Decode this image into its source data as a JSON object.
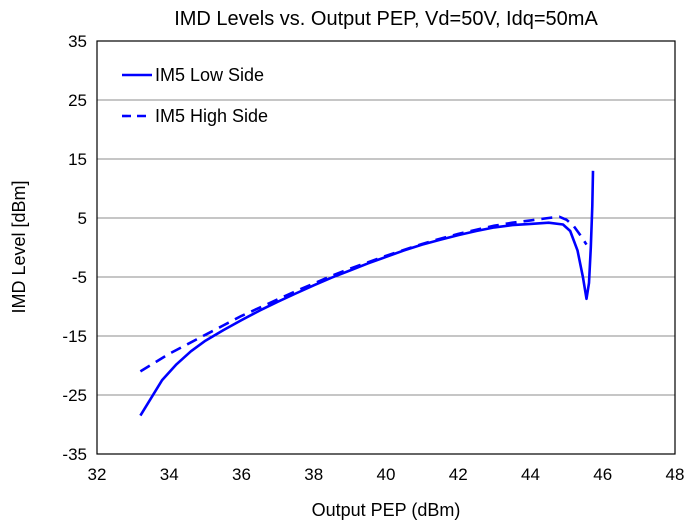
{
  "chart_data": {
    "type": "line",
    "title": "IMD Levels vs. Output PEP, Vd=50V, Idq=50mA",
    "xlabel": "Output PEP (dBm)",
    "ylabel": "IMD Level [dBm]",
    "xlim": [
      32,
      48
    ],
    "ylim": [
      -35,
      35
    ],
    "x_ticks": [
      "32",
      "34",
      "36",
      "38",
      "40",
      "42",
      "44",
      "46",
      "48"
    ],
    "y_ticks": [
      "35",
      "25",
      "15",
      "5",
      "-5",
      "-15",
      "-25",
      "-35"
    ],
    "grid": "horizontal",
    "legend_position": "top-left",
    "series": [
      {
        "name": "IM5 Low Side",
        "color": "#0000ff",
        "style": "solid",
        "points": [
          [
            33.2,
            -28.5
          ],
          [
            33.5,
            -25.5
          ],
          [
            33.8,
            -22.5
          ],
          [
            34.2,
            -19.8
          ],
          [
            34.6,
            -17.6
          ],
          [
            35.0,
            -15.8
          ],
          [
            35.5,
            -14.0
          ],
          [
            36.0,
            -12.3
          ],
          [
            36.5,
            -10.7
          ],
          [
            37.0,
            -9.2
          ],
          [
            37.5,
            -7.8
          ],
          [
            38.0,
            -6.4
          ],
          [
            38.5,
            -5.1
          ],
          [
            39.0,
            -3.9
          ],
          [
            39.5,
            -2.7
          ],
          [
            40.0,
            -1.6
          ],
          [
            40.5,
            -0.5
          ],
          [
            41.0,
            0.5
          ],
          [
            41.5,
            1.3
          ],
          [
            42.0,
            2.1
          ],
          [
            42.5,
            2.8
          ],
          [
            43.0,
            3.4
          ],
          [
            43.5,
            3.8
          ],
          [
            44.0,
            4.0
          ],
          [
            44.5,
            4.2
          ],
          [
            44.9,
            3.9
          ],
          [
            45.1,
            2.8
          ],
          [
            45.3,
            -0.5
          ],
          [
            45.45,
            -5.0
          ],
          [
            45.55,
            -8.7
          ],
          [
            45.62,
            -6.0
          ],
          [
            45.67,
            0.0
          ],
          [
            45.71,
            7.0
          ],
          [
            45.73,
            13.0
          ]
        ]
      },
      {
        "name": "IM5 High Side",
        "color": "#0000ff",
        "style": "dashed",
        "points": [
          [
            33.2,
            -21.0
          ],
          [
            33.6,
            -19.5
          ],
          [
            34.0,
            -18.0
          ],
          [
            34.5,
            -16.4
          ],
          [
            35.0,
            -14.8
          ],
          [
            35.5,
            -13.2
          ],
          [
            36.0,
            -11.6
          ],
          [
            36.5,
            -10.2
          ],
          [
            37.0,
            -8.8
          ],
          [
            37.5,
            -7.4
          ],
          [
            38.0,
            -6.1
          ],
          [
            38.5,
            -4.8
          ],
          [
            39.0,
            -3.6
          ],
          [
            39.5,
            -2.5
          ],
          [
            40.0,
            -1.4
          ],
          [
            40.5,
            -0.4
          ],
          [
            41.0,
            0.6
          ],
          [
            41.5,
            1.5
          ],
          [
            42.0,
            2.3
          ],
          [
            42.5,
            3.0
          ],
          [
            43.0,
            3.7
          ],
          [
            43.5,
            4.2
          ],
          [
            44.0,
            4.6
          ],
          [
            44.5,
            5.0
          ],
          [
            44.8,
            5.2
          ],
          [
            45.0,
            4.7
          ],
          [
            45.2,
            3.6
          ],
          [
            45.4,
            1.9
          ],
          [
            45.55,
            0.5
          ]
        ]
      }
    ]
  }
}
